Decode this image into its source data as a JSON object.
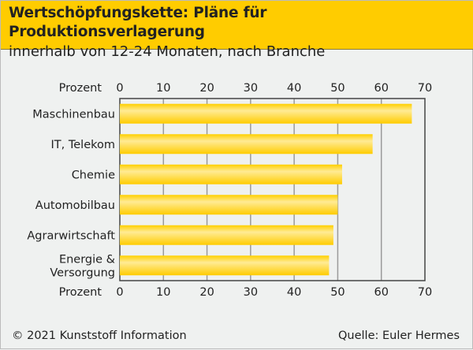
{
  "header": {
    "title": "Wertschöpfungskette: Pläne für Produktionsverlagerung",
    "subtitle": "innerhalb von 12-24 Monaten, nach Branche"
  },
  "footer": {
    "copyright": "© 2021 Kunststoff Information",
    "source": "Quelle: Euler Hermes"
  },
  "chart_data": {
    "type": "bar",
    "orientation": "horizontal",
    "title": "Wertschöpfungskette: Pläne für Produktionsverlagerung",
    "subtitle": "innerhalb von 12-24 Monaten, nach Branche",
    "categories": [
      "Maschinenbau",
      "IT, Telekom",
      "Chemie",
      "Automobilbau",
      "Agrarwirtschaft",
      "Energie & Versorgung"
    ],
    "category_lines": [
      [
        "Maschinenbau"
      ],
      [
        "IT, Telekom"
      ],
      [
        "Chemie"
      ],
      [
        "Automobilbau"
      ],
      [
        "Agrarwirtschaft"
      ],
      [
        "Energie &",
        "Versorgung"
      ]
    ],
    "values": [
      67,
      58,
      51,
      50,
      49,
      48
    ],
    "xlabel": "Prozent",
    "xlim": [
      0,
      70
    ],
    "ticks": [
      "0",
      "10",
      "20",
      "30",
      "40",
      "50",
      "60",
      "70"
    ],
    "grid": true,
    "bar_color": "#ffd21a"
  }
}
